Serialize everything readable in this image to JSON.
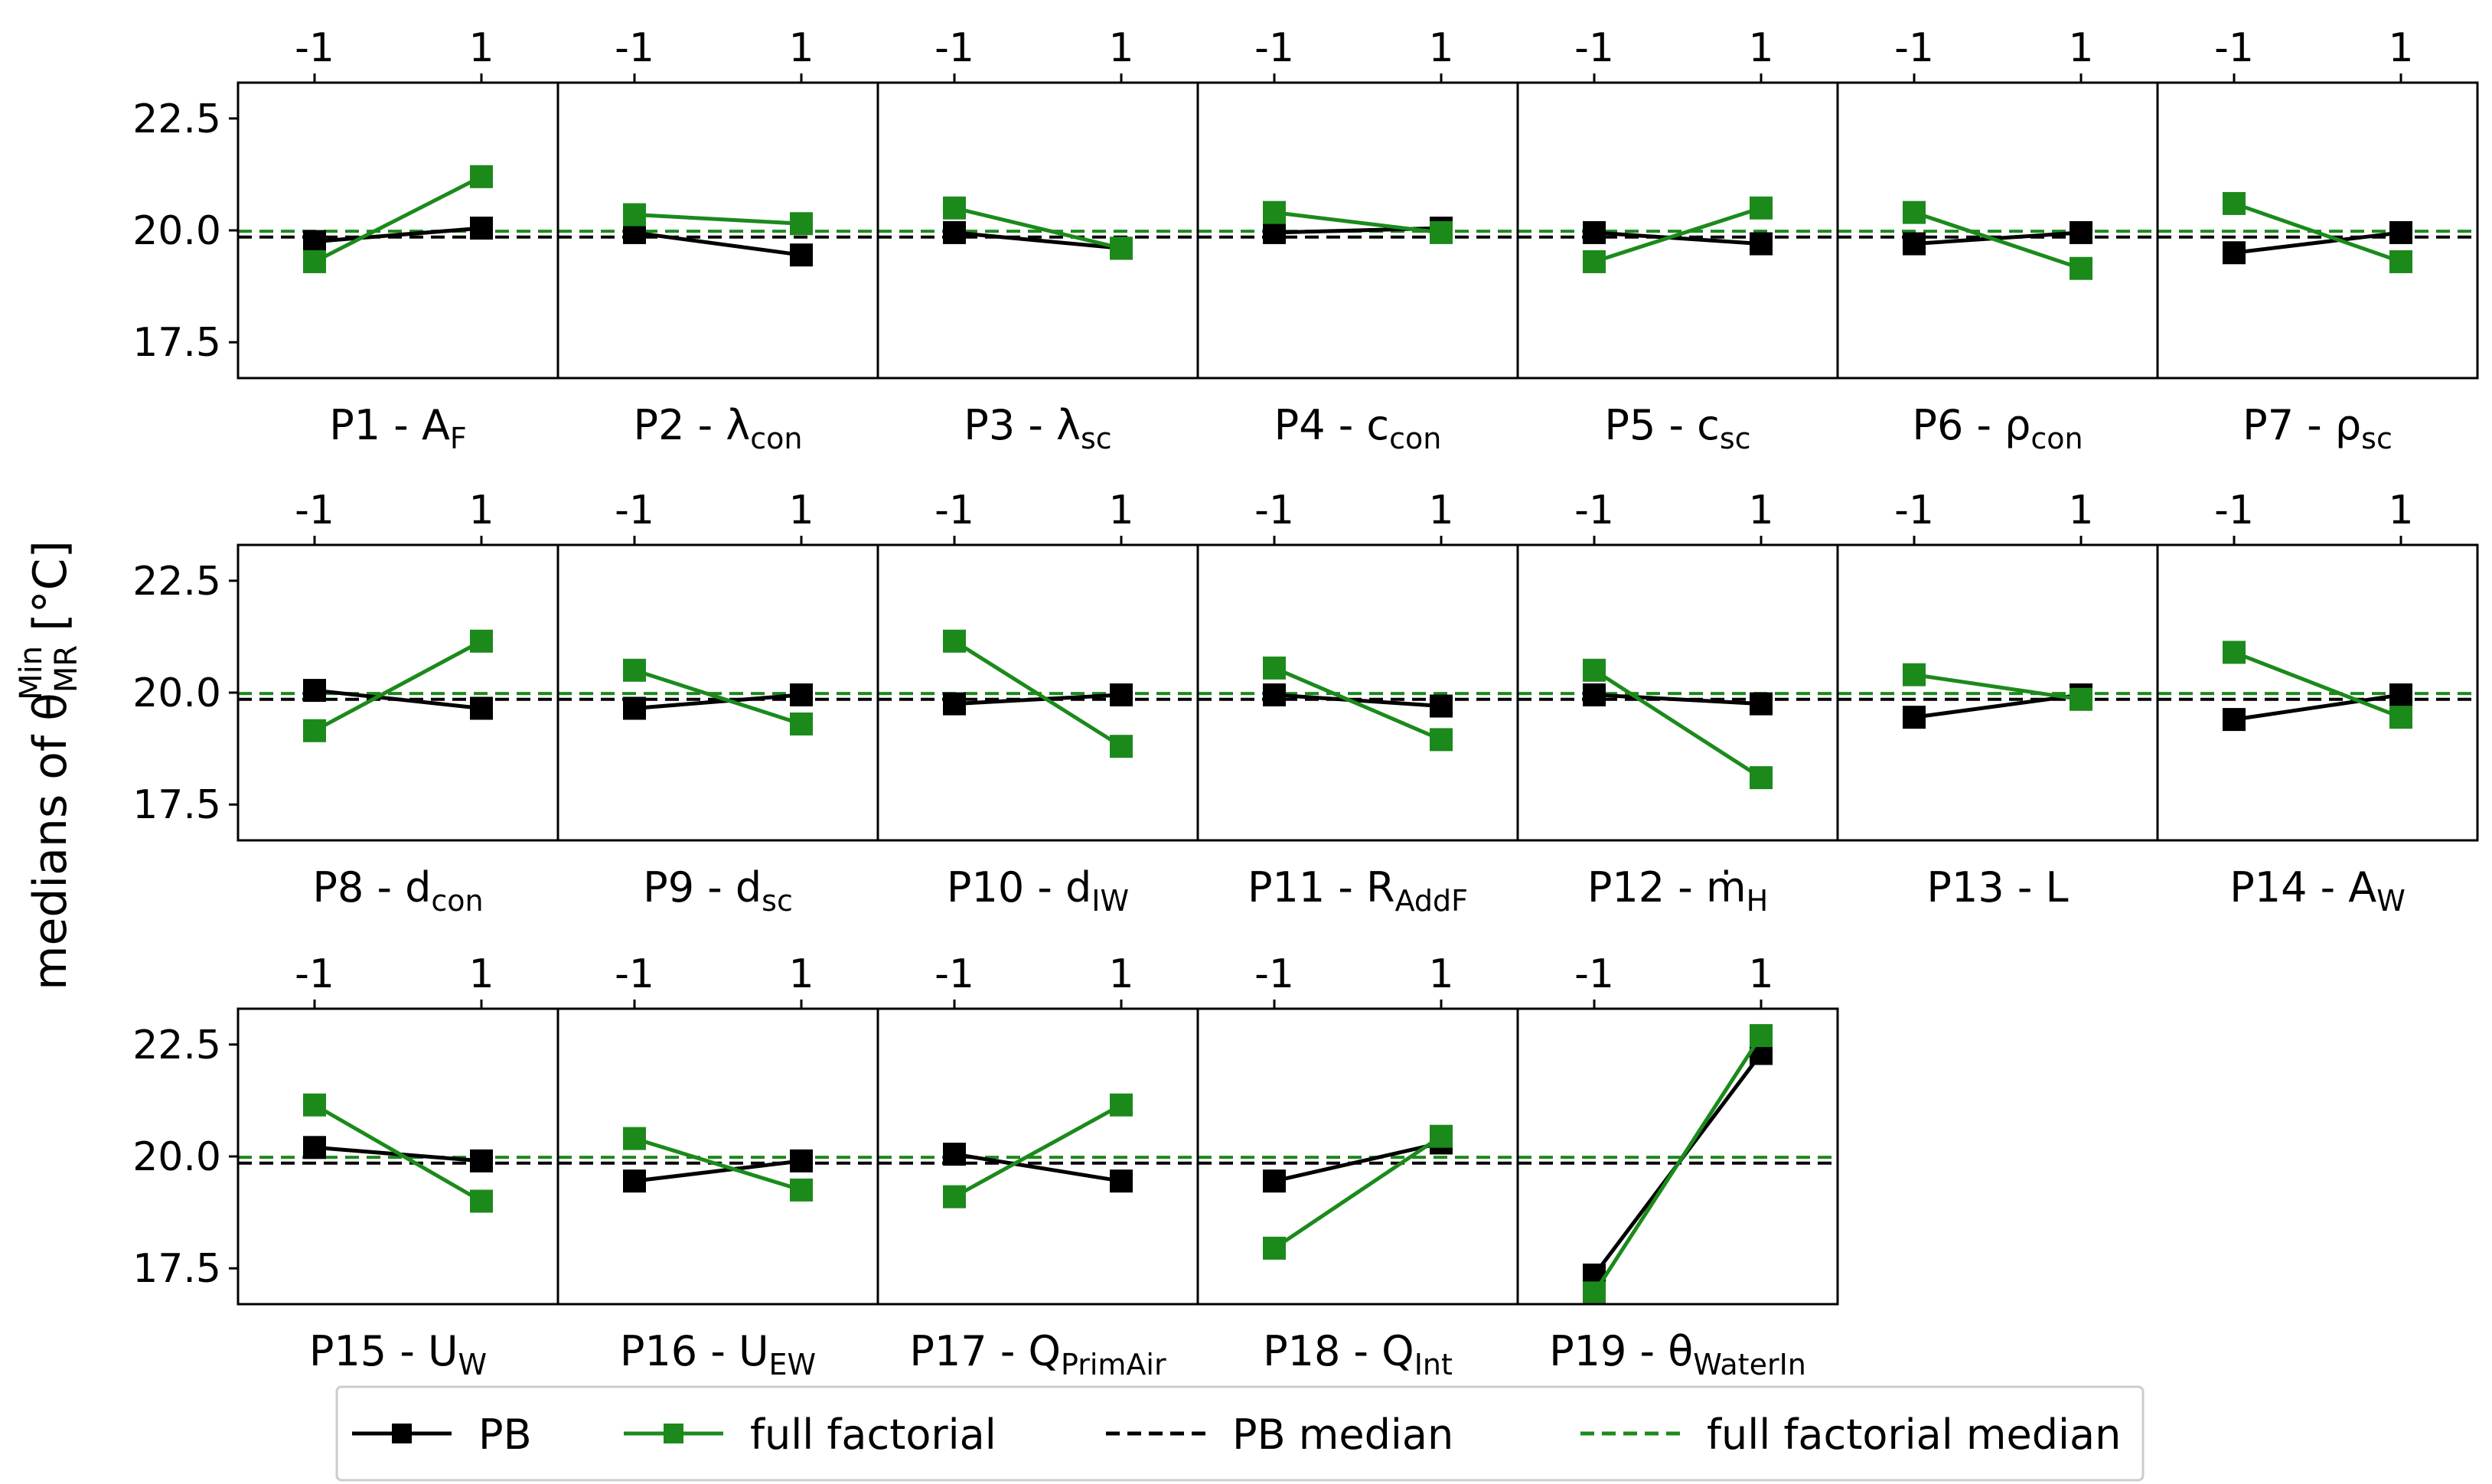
{
  "colors": {
    "pb": "#000000",
    "full_factorial": "#1b8a1b",
    "frame": "#000000",
    "background": "#ffffff"
  },
  "figure": {
    "ylabel_prefix": "medians of θ",
    "ylabel_sub": "MR",
    "ylabel_sup": "Min",
    "ylabel_unit": " [°C]"
  },
  "legend": {
    "pb": "PB",
    "full_factorial": "full factorial",
    "pb_median": "PB median",
    "full_factorial_median": "full factorial median"
  },
  "chart_data": {
    "type": "line",
    "grid": false,
    "x_categories": [
      "-1",
      "1"
    ],
    "ylim": [
      16.7,
      23.3
    ],
    "yticks": [
      "17.5",
      "20.0",
      "22.5"
    ],
    "pb_median": 19.85,
    "full_factorial_median": 19.98,
    "legend_position": "bottom",
    "panels": [
      {
        "label": "P1 - A",
        "sub": "F",
        "pb": [
          19.75,
          20.05
        ],
        "ff": [
          19.3,
          21.2
        ]
      },
      {
        "label": "P2 - λ",
        "sub": "con",
        "pb": [
          19.95,
          19.45
        ],
        "ff": [
          20.35,
          20.15
        ]
      },
      {
        "label": "P3 - λ",
        "sub": "sc",
        "pb": [
          19.95,
          19.6
        ],
        "ff": [
          20.5,
          19.6
        ]
      },
      {
        "label": "P4 - c",
        "sub": "con",
        "pb": [
          19.95,
          20.05
        ],
        "ff": [
          20.4,
          19.95
        ]
      },
      {
        "label": "P5 - c",
        "sub": "sc",
        "pb": [
          19.95,
          19.7
        ],
        "ff": [
          19.3,
          20.5
        ]
      },
      {
        "label": "P6 - ρ",
        "sub": "con",
        "pb": [
          19.7,
          19.95
        ],
        "ff": [
          20.4,
          19.15
        ]
      },
      {
        "label": "P7 - ρ",
        "sub": "sc",
        "pb": [
          19.5,
          19.95
        ],
        "ff": [
          20.6,
          19.3
        ]
      },
      {
        "label": "P8 - d",
        "sub": "con",
        "pb": [
          20.05,
          19.65
        ],
        "ff": [
          19.15,
          21.15
        ]
      },
      {
        "label": "P9 - d",
        "sub": "sc",
        "pb": [
          19.65,
          19.95
        ],
        "ff": [
          20.5,
          19.3
        ]
      },
      {
        "label": "P10 - d",
        "sub": "IW",
        "pb": [
          19.75,
          19.95
        ],
        "ff": [
          21.15,
          18.8
        ]
      },
      {
        "label": "P11 - R",
        "sub": "AddF",
        "pb": [
          19.95,
          19.7
        ],
        "ff": [
          20.55,
          18.95
        ]
      },
      {
        "label": "P12 - ṁ",
        "sub": "H",
        "pb": [
          19.95,
          19.75
        ],
        "ff": [
          20.5,
          18.1
        ]
      },
      {
        "label": "P13 - L",
        "sub": "",
        "pb": [
          19.45,
          19.95
        ],
        "ff": [
          20.4,
          19.85
        ]
      },
      {
        "label": "P14 - A",
        "sub": "W",
        "pb": [
          19.4,
          19.95
        ],
        "ff": [
          20.9,
          19.45
        ]
      },
      {
        "label": "P15 - U",
        "sub": "W",
        "pb": [
          20.2,
          19.9
        ],
        "ff": [
          21.15,
          19.0
        ]
      },
      {
        "label": "P16 - U",
        "sub": "EW",
        "pb": [
          19.45,
          19.9
        ],
        "ff": [
          20.4,
          19.25
        ]
      },
      {
        "label": "P17 - Q",
        "sub": "PrimAir",
        "pb": [
          20.05,
          19.45
        ],
        "ff": [
          19.1,
          21.15
        ]
      },
      {
        "label": "P18 - Q",
        "sub": "Int",
        "pb": [
          19.45,
          20.3
        ],
        "ff": [
          17.95,
          20.45
        ]
      },
      {
        "label": "P19 - θ",
        "sub": "WaterIn",
        "pb": [
          17.35,
          22.3
        ],
        "ff": [
          16.95,
          22.7
        ]
      }
    ]
  }
}
